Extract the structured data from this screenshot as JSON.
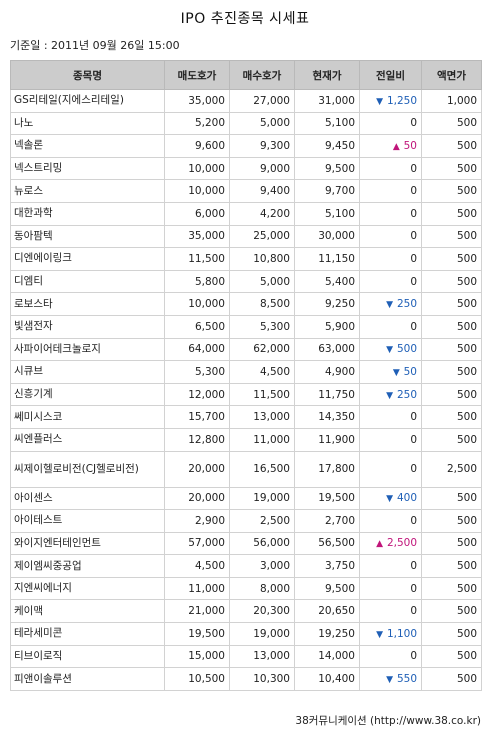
{
  "title": "IPO 추진종목 시세표",
  "basis": "기준일 : 2011년 09월 26일 15:00",
  "headers": [
    "종목명",
    "매도호가",
    "매수호가",
    "현재가",
    "전일비",
    "액면가"
  ],
  "rows": [
    {
      "name": "GS리테일(지에스리테일)",
      "ask": "35,000",
      "bid": "27,000",
      "price": "31,000",
      "dir": "down",
      "change": "1,250",
      "par": "1,000"
    },
    {
      "name": "나노",
      "ask": "5,200",
      "bid": "5,000",
      "price": "5,100",
      "dir": "none",
      "change": "0",
      "par": "500"
    },
    {
      "name": "넥솔론",
      "ask": "9,600",
      "bid": "9,300",
      "price": "9,450",
      "dir": "up",
      "change": "50",
      "par": "500"
    },
    {
      "name": "넥스트리밍",
      "ask": "10,000",
      "bid": "9,000",
      "price": "9,500",
      "dir": "none",
      "change": "0",
      "par": "500"
    },
    {
      "name": "뉴로스",
      "ask": "10,000",
      "bid": "9,400",
      "price": "9,700",
      "dir": "none",
      "change": "0",
      "par": "500"
    },
    {
      "name": "대한과학",
      "ask": "6,000",
      "bid": "4,200",
      "price": "5,100",
      "dir": "none",
      "change": "0",
      "par": "500"
    },
    {
      "name": "동아팜텍",
      "ask": "35,000",
      "bid": "25,000",
      "price": "30,000",
      "dir": "none",
      "change": "0",
      "par": "500"
    },
    {
      "name": "디엔에이링크",
      "ask": "11,500",
      "bid": "10,800",
      "price": "11,150",
      "dir": "none",
      "change": "0",
      "par": "500"
    },
    {
      "name": "디엠티",
      "ask": "5,800",
      "bid": "5,000",
      "price": "5,400",
      "dir": "none",
      "change": "0",
      "par": "500"
    },
    {
      "name": "로보스타",
      "ask": "10,000",
      "bid": "8,500",
      "price": "9,250",
      "dir": "down",
      "change": "250",
      "par": "500"
    },
    {
      "name": "빛샘전자",
      "ask": "6,500",
      "bid": "5,300",
      "price": "5,900",
      "dir": "none",
      "change": "0",
      "par": "500"
    },
    {
      "name": "사파이어테크놀로지",
      "ask": "64,000",
      "bid": "62,000",
      "price": "63,000",
      "dir": "down",
      "change": "500",
      "par": "500"
    },
    {
      "name": "시큐브",
      "ask": "5,300",
      "bid": "4,500",
      "price": "4,900",
      "dir": "down",
      "change": "50",
      "par": "500"
    },
    {
      "name": "신흥기계",
      "ask": "12,000",
      "bid": "11,500",
      "price": "11,750",
      "dir": "down",
      "change": "250",
      "par": "500"
    },
    {
      "name": "쎄미시스코",
      "ask": "15,700",
      "bid": "13,000",
      "price": "14,350",
      "dir": "none",
      "change": "0",
      "par": "500"
    },
    {
      "name": "씨엔플러스",
      "ask": "12,800",
      "bid": "11,000",
      "price": "11,900",
      "dir": "none",
      "change": "0",
      "par": "500"
    },
    {
      "name": "씨제이헬로비전(CJ헬로비전)",
      "ask": "20,000",
      "bid": "16,500",
      "price": "17,800",
      "dir": "none",
      "change": "0",
      "par": "2,500",
      "tall": true
    },
    {
      "name": "아이센스",
      "ask": "20,000",
      "bid": "19,000",
      "price": "19,500",
      "dir": "down",
      "change": "400",
      "par": "500"
    },
    {
      "name": "아이테스트",
      "ask": "2,900",
      "bid": "2,500",
      "price": "2,700",
      "dir": "none",
      "change": "0",
      "par": "500"
    },
    {
      "name": "와이지엔터테인먼트",
      "ask": "57,000",
      "bid": "56,000",
      "price": "56,500",
      "dir": "up",
      "change": "2,500",
      "par": "500"
    },
    {
      "name": "제이엠씨중공업",
      "ask": "4,500",
      "bid": "3,000",
      "price": "3,750",
      "dir": "none",
      "change": "0",
      "par": "500"
    },
    {
      "name": "지엔씨에너지",
      "ask": "11,000",
      "bid": "8,000",
      "price": "9,500",
      "dir": "none",
      "change": "0",
      "par": "500"
    },
    {
      "name": "케이맥",
      "ask": "21,000",
      "bid": "20,300",
      "price": "20,650",
      "dir": "none",
      "change": "0",
      "par": "500"
    },
    {
      "name": "테라세미콘",
      "ask": "19,500",
      "bid": "19,000",
      "price": "19,250",
      "dir": "down",
      "change": "1,100",
      "par": "500"
    },
    {
      "name": "티브이로직",
      "ask": "15,000",
      "bid": "13,000",
      "price": "14,000",
      "dir": "none",
      "change": "0",
      "par": "500"
    },
    {
      "name": "피앤이솔루션",
      "ask": "10,500",
      "bid": "10,300",
      "price": "10,400",
      "dir": "down",
      "change": "550",
      "par": "500"
    }
  ],
  "footer": "38커뮤니케이션 (http://www.38.co.kr)",
  "colors": {
    "header_bg": "#cccccc",
    "down": "#1f5fb6",
    "up": "#c0157a"
  },
  "icons": {
    "down": "triangle-down-icon",
    "up": "triangle-up-icon"
  }
}
